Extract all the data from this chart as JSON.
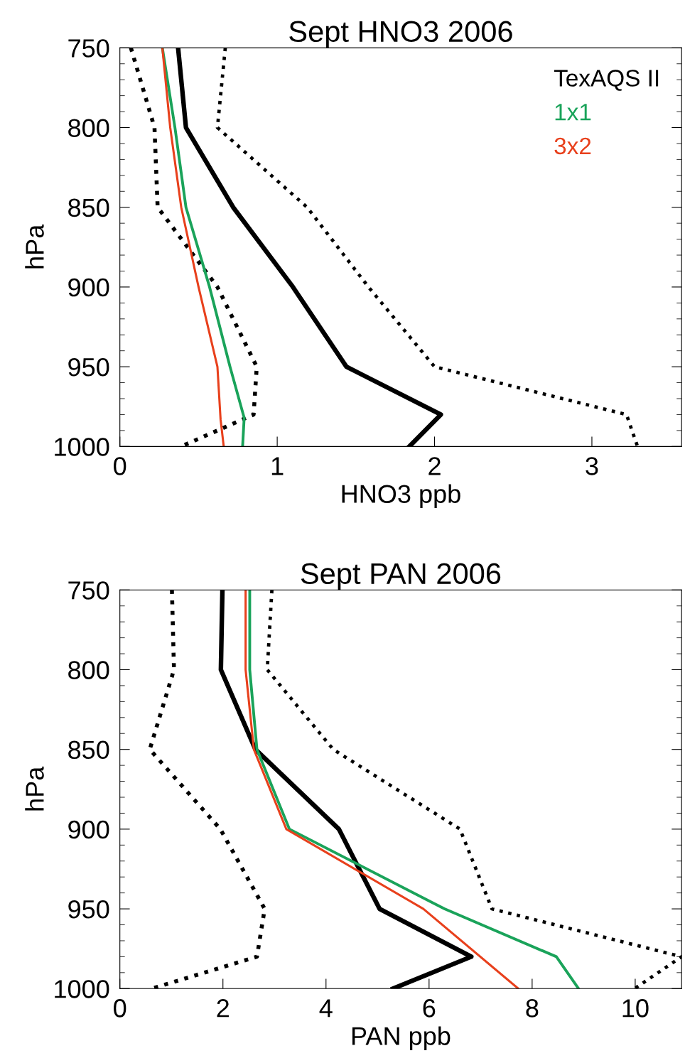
{
  "chart_data": [
    {
      "type": "line",
      "title": "Sept HNO3 2006",
      "xlabel": "HNO3 ppb",
      "ylabel": "hPa",
      "xlim": [
        0,
        3.57
      ],
      "xticks": [
        0,
        1,
        2,
        3
      ],
      "ylim": [
        1000,
        750
      ],
      "yticks": [
        750,
        {
          "value": 760,
          "label": null
        },
        {
          "value": 770,
          "label": null
        },
        {
          "value": 780,
          "label": null
        },
        {
          "value": 790,
          "label": null
        },
        800,
        {
          "value": 810,
          "label": null
        },
        {
          "value": 820,
          "label": null
        },
        {
          "value": 830,
          "label": null
        },
        {
          "value": 840,
          "label": null
        },
        850,
        {
          "value": 860,
          "label": null
        },
        {
          "value": 870,
          "label": null
        },
        {
          "value": 880,
          "label": null
        },
        {
          "value": 890,
          "label": null
        },
        900,
        {
          "value": 910,
          "label": null
        },
        {
          "value": 920,
          "label": null
        },
        {
          "value": 930,
          "label": null
        },
        {
          "value": 940,
          "label": null
        },
        950,
        {
          "value": 960,
          "label": null
        },
        {
          "value": 970,
          "label": null
        },
        {
          "value": 980,
          "label": null
        },
        {
          "value": 990,
          "label": null
        },
        1000
      ],
      "legend": "top right",
      "grid": false,
      "series": [
        {
          "name": "TexAQS II",
          "color": "#000000",
          "line_style": "solid",
          "x": [
            0.37,
            0.42,
            0.72,
            1.1,
            1.44,
            2.04,
            1.84
          ],
          "values": [
            750,
            800,
            850,
            900,
            950,
            980,
            1000
          ]
        },
        {
          "color": "#000000",
          "line_style": "dotted",
          "x": [
            0.07,
            0.22,
            0.24,
            0.62,
            0.87,
            0.85,
            0.39
          ],
          "values": [
            750,
            800,
            850,
            900,
            950,
            980,
            1000
          ]
        },
        {
          "color": "#000000",
          "line_style": "dotted",
          "x": [
            0.67,
            0.62,
            1.19,
            1.58,
            2.0,
            3.22,
            3.29
          ],
          "values": [
            750,
            800,
            850,
            900,
            950,
            980,
            1000
          ]
        },
        {
          "name": "1x1",
          "color": "#1aa35a",
          "line_style": "solid",
          "x": [
            0.27,
            0.35,
            0.42,
            0.57,
            0.7,
            0.79,
            0.78
          ],
          "values": [
            750,
            800,
            850,
            900,
            950,
            982,
            1000
          ]
        },
        {
          "name": "3x2",
          "color": "#e8401c",
          "line_style": "solid",
          "x": [
            0.27,
            0.32,
            0.39,
            0.5,
            0.62,
            0.64,
            0.66
          ],
          "values": [
            750,
            800,
            850,
            900,
            950,
            983,
            1000
          ]
        }
      ]
    },
    {
      "type": "line",
      "title": "Sept PAN 2006",
      "xlabel": "PAN ppb",
      "ylabel": "hPa",
      "xlim": [
        0,
        10.9
      ],
      "xticks": [
        0,
        2,
        4,
        6,
        8,
        10
      ],
      "ylim": [
        1000,
        750
      ],
      "yticks": [
        750,
        {
          "value": 760,
          "label": null
        },
        {
          "value": 770,
          "label": null
        },
        {
          "value": 780,
          "label": null
        },
        {
          "value": 790,
          "label": null
        },
        800,
        {
          "value": 810,
          "label": null
        },
        {
          "value": 820,
          "label": null
        },
        {
          "value": 830,
          "label": null
        },
        {
          "value": 840,
          "label": null
        },
        850,
        {
          "value": 860,
          "label": null
        },
        {
          "value": 870,
          "label": null
        },
        {
          "value": 880,
          "label": null
        },
        {
          "value": 890,
          "label": null
        },
        900,
        {
          "value": 910,
          "label": null
        },
        {
          "value": 920,
          "label": null
        },
        {
          "value": 930,
          "label": null
        },
        {
          "value": 940,
          "label": null
        },
        950,
        {
          "value": 960,
          "label": null
        },
        {
          "value": 970,
          "label": null
        },
        {
          "value": 980,
          "label": null
        },
        {
          "value": 990,
          "label": null
        },
        1000
      ],
      "grid": false,
      "series": [
        {
          "color": "#000000",
          "line_style": "solid",
          "x": [
            1.99,
            1.96,
            2.63,
            4.25,
            5.04,
            6.82,
            5.3
          ],
          "values": [
            750,
            800,
            850,
            900,
            950,
            980,
            1000
          ]
        },
        {
          "color": "#000000",
          "line_style": "dotted",
          "x": [
            1.01,
            1.05,
            0.58,
            1.95,
            2.81,
            2.66,
            0.62
          ],
          "values": [
            750,
            800,
            850,
            900,
            950,
            980,
            1000
          ]
        },
        {
          "color": "#000000",
          "line_style": "dotted",
          "x": [
            2.95,
            2.86,
            4.14,
            6.6,
            7.22,
            10.9,
            9.99
          ],
          "values": [
            750,
            800,
            850,
            900,
            950,
            980,
            1000
          ]
        },
        {
          "color": "#1aa35a",
          "line_style": "solid",
          "x": [
            2.52,
            2.52,
            2.66,
            3.29,
            6.3,
            8.47,
            8.9
          ],
          "values": [
            750,
            800,
            850,
            900,
            950,
            980,
            1000
          ]
        },
        {
          "color": "#e8401c",
          "line_style": "solid",
          "x": [
            2.44,
            2.44,
            2.6,
            3.23,
            5.89,
            7.73
          ],
          "values": [
            750,
            800,
            850,
            900,
            950,
            1000
          ]
        }
      ]
    }
  ]
}
